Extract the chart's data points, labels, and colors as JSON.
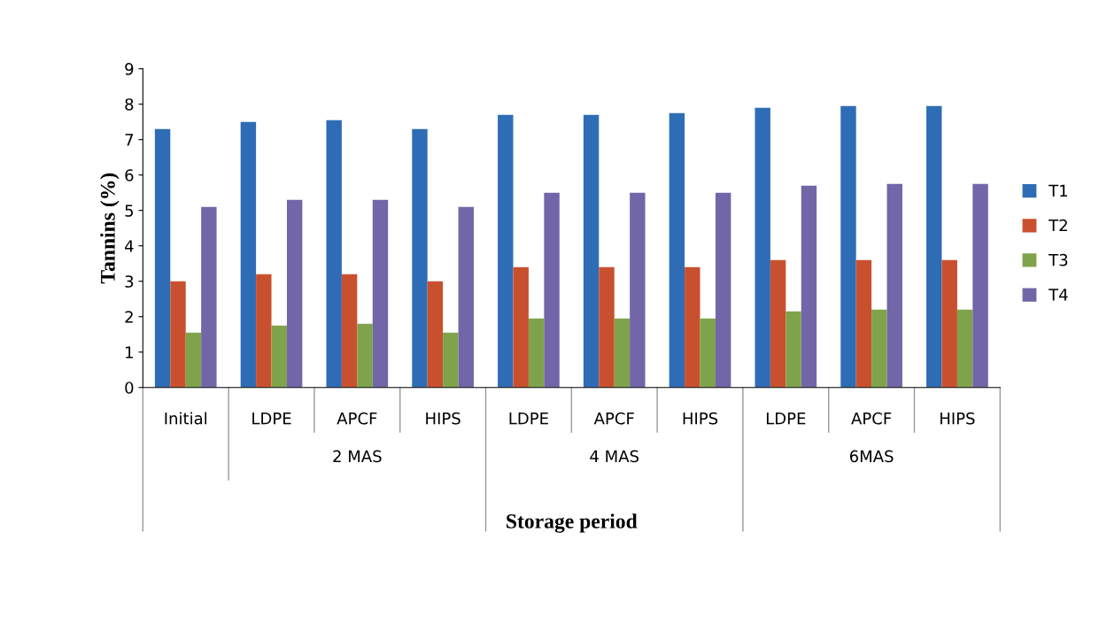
{
  "chart_data": {
    "type": "bar",
    "xlabel": "Storage period",
    "ylabel": "Tannins (%)",
    "categories": [
      "Initial",
      "LDPE",
      "APCF",
      "HIPS",
      "LDPE",
      "APCF",
      "HIPS",
      "LDPE",
      "APCF",
      "HIPS"
    ],
    "annotations": [
      "2 MAS",
      "4 MAS",
      "6MAS"
    ],
    "series": [
      {
        "name": "T1",
        "color": "#2e6db5",
        "values": [
          7.3,
          7.5,
          7.55,
          7.3,
          7.7,
          7.7,
          7.75,
          7.9,
          7.95,
          7.95
        ]
      },
      {
        "name": "T2",
        "color": "#c9502f",
        "values": [
          3.0,
          3.2,
          3.2,
          3.0,
          3.4,
          3.4,
          3.4,
          3.6,
          3.6,
          3.6
        ]
      },
      {
        "name": "T3",
        "color": "#7fa34a",
        "values": [
          1.55,
          1.75,
          1.8,
          1.55,
          1.95,
          1.95,
          1.95,
          2.15,
          2.2,
          2.2
        ]
      },
      {
        "name": "T4",
        "color": "#7266a8",
        "values": [
          5.1,
          5.3,
          5.3,
          5.1,
          5.5,
          5.5,
          5.5,
          5.7,
          5.75,
          5.75
        ]
      }
    ],
    "ylim": [
      0,
      9
    ],
    "yticks": [
      0,
      1,
      2,
      3,
      4,
      5,
      6,
      7,
      8,
      9
    ],
    "grid": false,
    "legend": "right"
  }
}
